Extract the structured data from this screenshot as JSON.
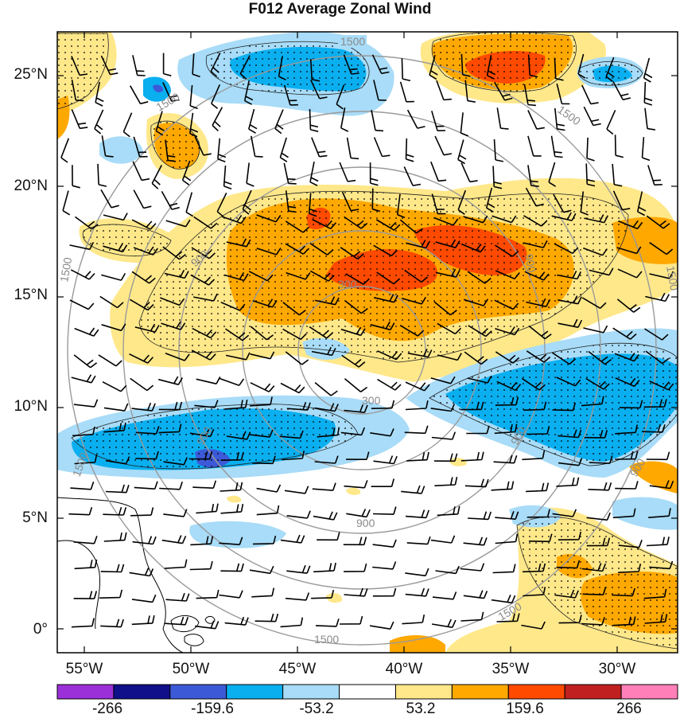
{
  "title": "F012 Average Zonal Wind",
  "lat_labels": [
    "25°N",
    "20°N",
    "15°N",
    "10°N",
    "5°N",
    "0°"
  ],
  "lon_labels": [
    "55°W",
    "50°W",
    "45°W",
    "40°W",
    "35°W",
    "30°W"
  ],
  "colorbar": {
    "colors": [
      "#9b30d8",
      "#10108a",
      "#3c5ad8",
      "#0aaff0",
      "#a8dcf8",
      "#ffffff",
      "#ffe88a",
      "#ffa800",
      "#ff4a00",
      "#c02020",
      "#ff80b8"
    ],
    "labels": [
      "-266",
      "-159.6",
      "-53.2",
      "53.2",
      "159.6",
      "266"
    ]
  },
  "contour_labels": [
    "1500",
    "1500",
    "900",
    "300",
    "300",
    "900",
    "900",
    "1500",
    "1500",
    "1500",
    "900",
    "1500",
    "1500",
    "900"
  ],
  "map_state": {
    "projection": "lat-lon",
    "lat_range": [
      -1,
      27
    ],
    "lon_range": [
      -57,
      -28
    ],
    "overlays": [
      "shaded zonal wind",
      "stippling",
      "range rings",
      "wind barbs",
      "coastlines"
    ]
  }
}
